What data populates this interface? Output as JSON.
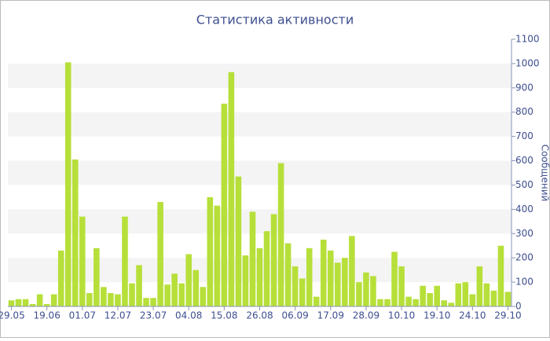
{
  "chart_data": {
    "type": "bar",
    "title": "Статистика активности",
    "y_label": "Сообщений",
    "y_axis_side": "right",
    "categories": [
      "29.05",
      null,
      null,
      null,
      null,
      "19.06",
      null,
      null,
      null,
      null,
      "01.07",
      null,
      null,
      null,
      null,
      "12.07",
      null,
      null,
      null,
      null,
      "23.07",
      null,
      null,
      null,
      null,
      "04.08",
      null,
      null,
      null,
      null,
      "15.08",
      null,
      null,
      null,
      null,
      "26.08",
      null,
      null,
      null,
      null,
      "06.09",
      null,
      null,
      null,
      null,
      "17.09",
      null,
      null,
      null,
      null,
      "28.09",
      null,
      null,
      null,
      null,
      "10.10",
      null,
      null,
      null,
      null,
      "19.10",
      null,
      null,
      null,
      null,
      "24.10",
      null,
      null,
      null,
      null,
      "29.10"
    ],
    "values": [
      25,
      30,
      30,
      10,
      50,
      10,
      50,
      230,
      1005,
      605,
      370,
      55,
      240,
      80,
      55,
      50,
      370,
      95,
      170,
      35,
      35,
      430,
      90,
      135,
      95,
      215,
      150,
      80,
      450,
      415,
      835,
      965,
      535,
      210,
      390,
      240,
      310,
      380,
      590,
      260,
      165,
      115,
      240,
      40,
      275,
      230,
      180,
      200,
      290,
      100,
      140,
      125,
      30,
      30,
      225,
      165,
      40,
      30,
      85,
      55,
      85,
      25,
      15,
      95,
      100,
      50,
      165,
      95,
      65,
      250,
      60
    ],
    "color": "#b7df3a",
    "ylim": [
      0,
      1100
    ],
    "yticks": [
      0,
      100,
      200,
      300,
      400,
      500,
      600,
      700,
      800,
      900,
      1000,
      1100
    ],
    "grid": "bands"
  }
}
